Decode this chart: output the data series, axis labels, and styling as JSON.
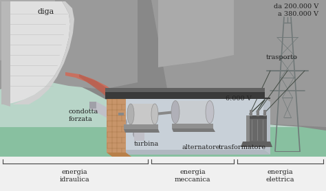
{
  "bg_color": "#b8d5c8",
  "text_color": "#222222",
  "labels": {
    "diga": "diga",
    "condotta_forzata": "condotta\nforzata",
    "turbina": "turbina",
    "alternatore": "alternatore",
    "trasformatore": "trasformatore",
    "trasporto": "trasporto",
    "volt_6000": "6.000 V",
    "volt_high": "da 200.000 V\na 380.000 V",
    "energia_idraulica": "energia\nidraulica",
    "energia_meccanica": "energia\nmeccanica",
    "energia_elettrica": "energia\nelettrica"
  },
  "rock_dark": "#888888",
  "rock_mid": "#9a9a9a",
  "rock_light": "#aaaaaa",
  "dam_white": "#e0e0e0",
  "dam_lines": "#c0c0c0",
  "flow_red": "#c87060",
  "pipe_silver": "#c0c0c8",
  "brick_face": "#c8956a",
  "brick_side": "#b8804a",
  "brick_mortar": "#a07040",
  "interior_bg": "#c8d0d8",
  "interior_floor": "#b0b8c0",
  "roof_dark": "#3a3a3a",
  "roof_top": "#606060",
  "turbine_body": "#c0c0c0",
  "turbine_dark": "#909090",
  "trans_body": "#686868",
  "trans_light": "#888888",
  "tower_color": "#707878",
  "wire_color": "#404840",
  "ground_green": "#88c0a0",
  "bottom_white": "#f0f0f0",
  "bracket_color": "#444444",
  "fs_main": 7,
  "fs_small": 6
}
